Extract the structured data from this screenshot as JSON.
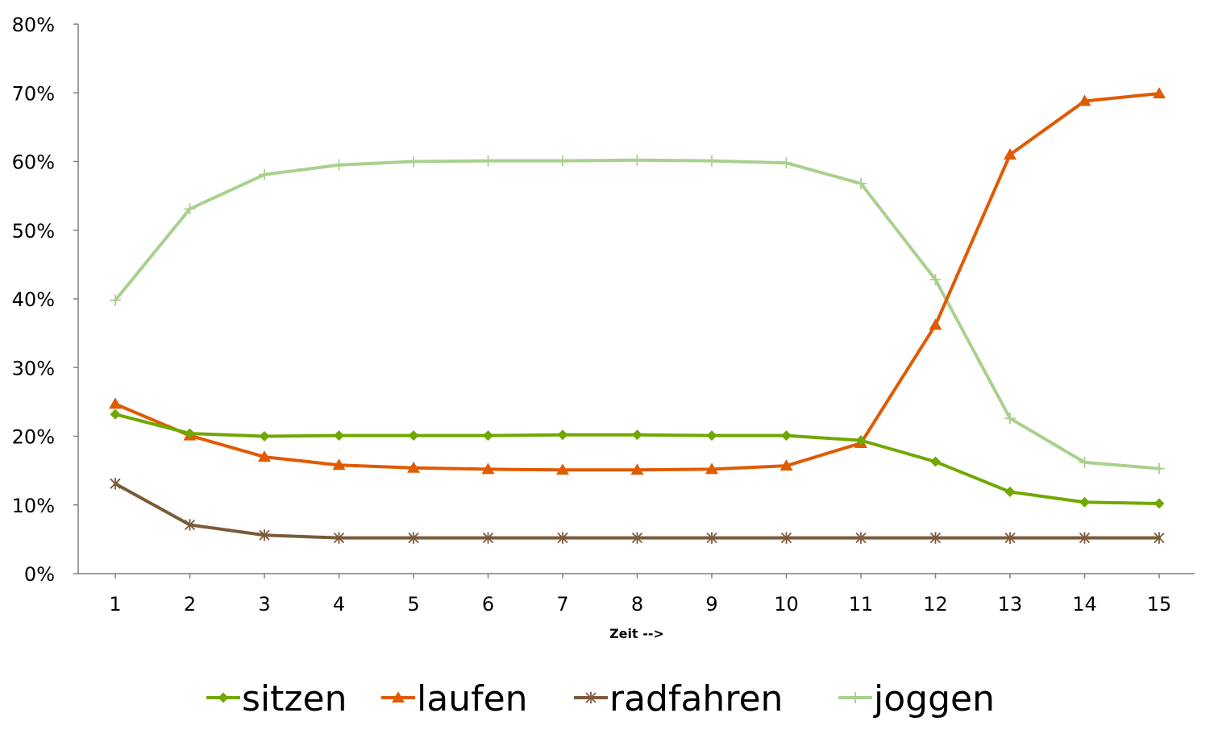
{
  "chart_data": {
    "type": "line",
    "title": "",
    "xlabel": "Zeit -->",
    "ylabel": "",
    "categories": [
      "1",
      "2",
      "3",
      "4",
      "5",
      "6",
      "7",
      "8",
      "9",
      "10",
      "11",
      "12",
      "13",
      "14",
      "15"
    ],
    "yticks": [
      "0%",
      "10%",
      "20%",
      "30%",
      "40%",
      "50%",
      "60%",
      "70%",
      "80%"
    ],
    "ylim": [
      0,
      80
    ],
    "grid": false,
    "legend_position": "bottom",
    "series": [
      {
        "name": "sitzen",
        "color": "#70a800",
        "marker": "diamond",
        "values": [
          23.2,
          20.4,
          20.0,
          20.1,
          20.1,
          20.1,
          20.2,
          20.2,
          20.1,
          20.1,
          19.4,
          16.3,
          11.9,
          10.4,
          10.2
        ]
      },
      {
        "name": "laufen",
        "color": "#e05a00",
        "marker": "triangle",
        "values": [
          24.7,
          20.1,
          17.0,
          15.8,
          15.4,
          15.2,
          15.1,
          15.1,
          15.2,
          15.7,
          19.0,
          36.2,
          61.0,
          68.8,
          69.9
        ]
      },
      {
        "name": "radfahren",
        "color": "#7b5a3a",
        "marker": "star",
        "values": [
          13.1,
          7.1,
          5.6,
          5.2,
          5.2,
          5.2,
          5.2,
          5.2,
          5.2,
          5.2,
          5.2,
          5.2,
          5.2,
          5.2,
          5.2
        ]
      },
      {
        "name": "joggen",
        "color": "#a9d18e",
        "marker": "plus",
        "values": [
          39.8,
          53.1,
          58.1,
          59.5,
          60.0,
          60.1,
          60.1,
          60.2,
          60.1,
          59.8,
          56.8,
          42.8,
          22.6,
          16.2,
          15.3
        ]
      }
    ]
  }
}
